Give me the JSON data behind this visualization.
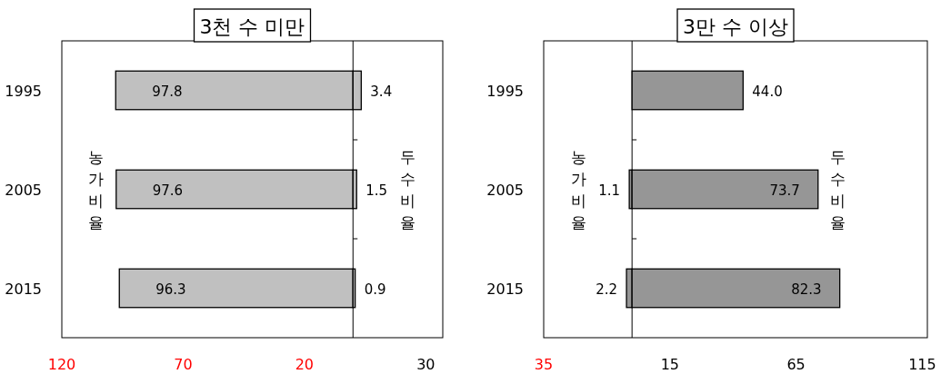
{
  "chart_data": [
    {
      "type": "bar",
      "title": "3천 수 미만",
      "orientation": "horizontal",
      "categories": [
        "1995",
        "2005",
        "2015"
      ],
      "xlim": [
        -120,
        37
      ],
      "xticks": [
        {
          "value": -120,
          "label": "120"
        },
        {
          "value": -70,
          "label": "70"
        },
        {
          "value": -20,
          "label": "20"
        },
        30
      ],
      "series": [
        {
          "name": "농가비율",
          "color": "#c0c0c0",
          "values": [
            97.8,
            97.6,
            96.3
          ],
          "base": [
            -97.8,
            -97.6,
            -96.3
          ],
          "value_labels": [
            "97.8",
            "97.6",
            "96.3"
          ]
        },
        {
          "name": "두수비율",
          "color": "#c0c0c0",
          "values": [
            3.4,
            1.5,
            0.9
          ],
          "value_labels": [
            "3.4",
            "1.5",
            "0.9"
          ]
        }
      ]
    },
    {
      "type": "bar",
      "title": "3만 수 이상",
      "orientation": "horizontal",
      "categories": [
        "1995",
        "2005",
        "2015"
      ],
      "xlim": [
        -35,
        117
      ],
      "xticks": [
        {
          "value": -35,
          "label": "35"
        },
        15,
        65,
        115
      ],
      "series": [
        {
          "name": "농가비율",
          "color": "#969696",
          "values": [
            null,
            1.1,
            2.2
          ],
          "base": [
            null,
            -1.1,
            -2.2
          ],
          "value_labels": [
            null,
            "1.1",
            "2.2"
          ]
        },
        {
          "name": "두수비율",
          "color": "#969696",
          "values": [
            44.0,
            73.7,
            82.3
          ],
          "value_labels": [
            "44.0",
            "73.7",
            "82.3"
          ]
        }
      ]
    }
  ]
}
